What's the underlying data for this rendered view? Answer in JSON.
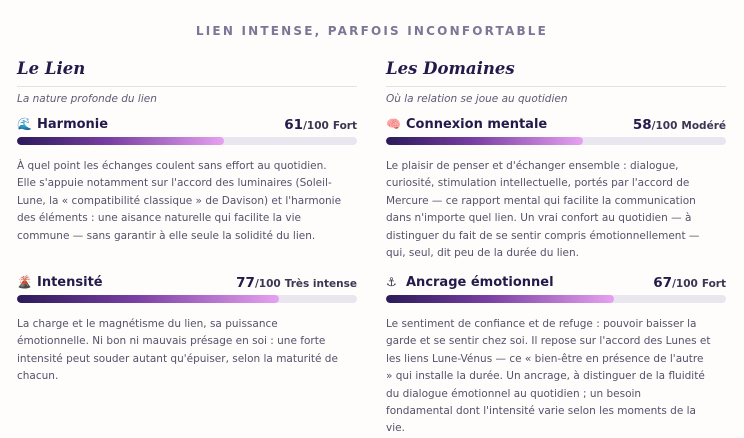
{
  "kicker": "LIEN INTENSE, PARFOIS INCONFORTABLE",
  "left": {
    "title": "Le Lien",
    "subtitle": "La nature profonde du lien",
    "metrics": [
      {
        "icon": "wave-icon",
        "glyph": "🌊",
        "name": "Harmonie",
        "score": "61",
        "max": "/100",
        "level": "Fort",
        "fraction": 0.61,
        "desc": [
          "À quel point les échanges coulent sans effort au quotidien.",
          "Elle s'appuie notamment sur l'accord des luminaires (Soleil-",
          "Lune, la « compatibilité classique » de Davison) et l'harmonie",
          "des éléments : une aisance naturelle qui facilite la vie",
          "commune — sans garantir à elle seule la solidité du lien."
        ]
      },
      {
        "icon": "volcano-icon",
        "glyph": "🌋",
        "name": "Intensité",
        "score": "77",
        "max": "/100",
        "level": "Très intense",
        "fraction": 0.77,
        "desc": [
          "La charge et le magnétisme du lien, sa puissance",
          "émotionnelle. Ni bon ni mauvais présage en soi : une forte",
          "intensité peut souder autant qu'épuiser, selon la maturité de",
          "chacun."
        ]
      }
    ]
  },
  "right": {
    "title": "Les Domaines",
    "subtitle": "Où la relation se joue au quotidien",
    "metrics": [
      {
        "icon": "brain-icon",
        "glyph": "🧠",
        "name": "Connexion mentale",
        "score": "58",
        "max": "/100",
        "level": "Modéré",
        "fraction": 0.58,
        "desc": [
          "Le plaisir de penser et d'échanger ensemble : dialogue,",
          "curiosité, stimulation intellectuelle, portés par l'accord de",
          "Mercure — ce rapport mental qui facilite la communication",
          "dans n'importe quel lien. Un vrai confort au quotidien — à",
          "distinguer du fait de se sentir compris émotionnellement —",
          "qui, seul, dit peu de la durée du lien."
        ]
      },
      {
        "icon": "anchor-icon",
        "glyph": "⚓",
        "name": "Ancrage émotionnel",
        "score": "67",
        "max": "/100",
        "level": "Fort",
        "fraction": 0.67,
        "desc": [
          "Le sentiment de confiance et de refuge : pouvoir baisser la",
          "garde et se sentir chez soi. Il repose sur l'accord des Lunes et",
          "les liens Lune-Vénus — ce « bien-être en présence de l'autre",
          "» qui installe la durée. Un ancrage, à distinguer de la fluidité",
          "du dialogue émotionnel au quotidien ; un besoin",
          "fondamental dont l'intensité varie selon les moments de la",
          "vie."
        ]
      }
    ]
  }
}
